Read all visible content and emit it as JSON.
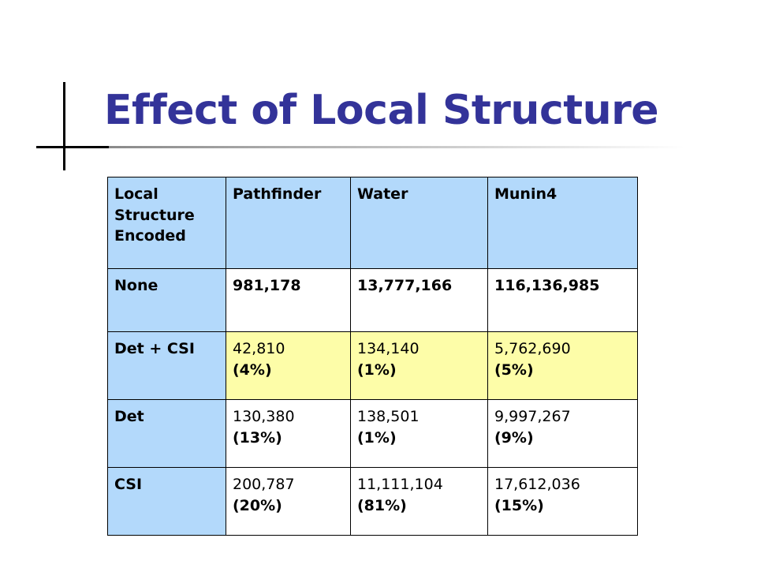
{
  "title": "Effect of Local Structure",
  "colors": {
    "title": "#333399",
    "header_fill": "#b3d9fb",
    "highlight_fill": "#fdfda8"
  },
  "table": {
    "header": {
      "col0_lines": [
        "Local",
        "Structure Encoded"
      ],
      "col1": "Pathfinder",
      "col2": "Water",
      "col3": "Munin4"
    },
    "rows": [
      {
        "label": "None",
        "cells": [
          {
            "value": "981,178",
            "pct": ""
          },
          {
            "value": "13,777,166",
            "pct": ""
          },
          {
            "value": "116,136,985",
            "pct": ""
          }
        ]
      },
      {
        "label": "Det + CSI",
        "cells": [
          {
            "value": "42,810",
            "pct": "(4%)"
          },
          {
            "value": "134,140",
            "pct": "(1%)"
          },
          {
            "value": "5,762,690",
            "pct": "(5%)"
          }
        ]
      },
      {
        "label": "Det",
        "cells": [
          {
            "value": "130,380",
            "pct": "(13%)"
          },
          {
            "value": "138,501",
            "pct": "(1%)"
          },
          {
            "value": "9,997,267",
            "pct": "(9%)"
          }
        ]
      },
      {
        "label": "CSI",
        "cells": [
          {
            "value": "200,787",
            "pct": "(20%)"
          },
          {
            "value": "11,111,104",
            "pct": "(81%)"
          },
          {
            "value": "17,612,036",
            "pct": "(15%)"
          }
        ]
      }
    ]
  }
}
